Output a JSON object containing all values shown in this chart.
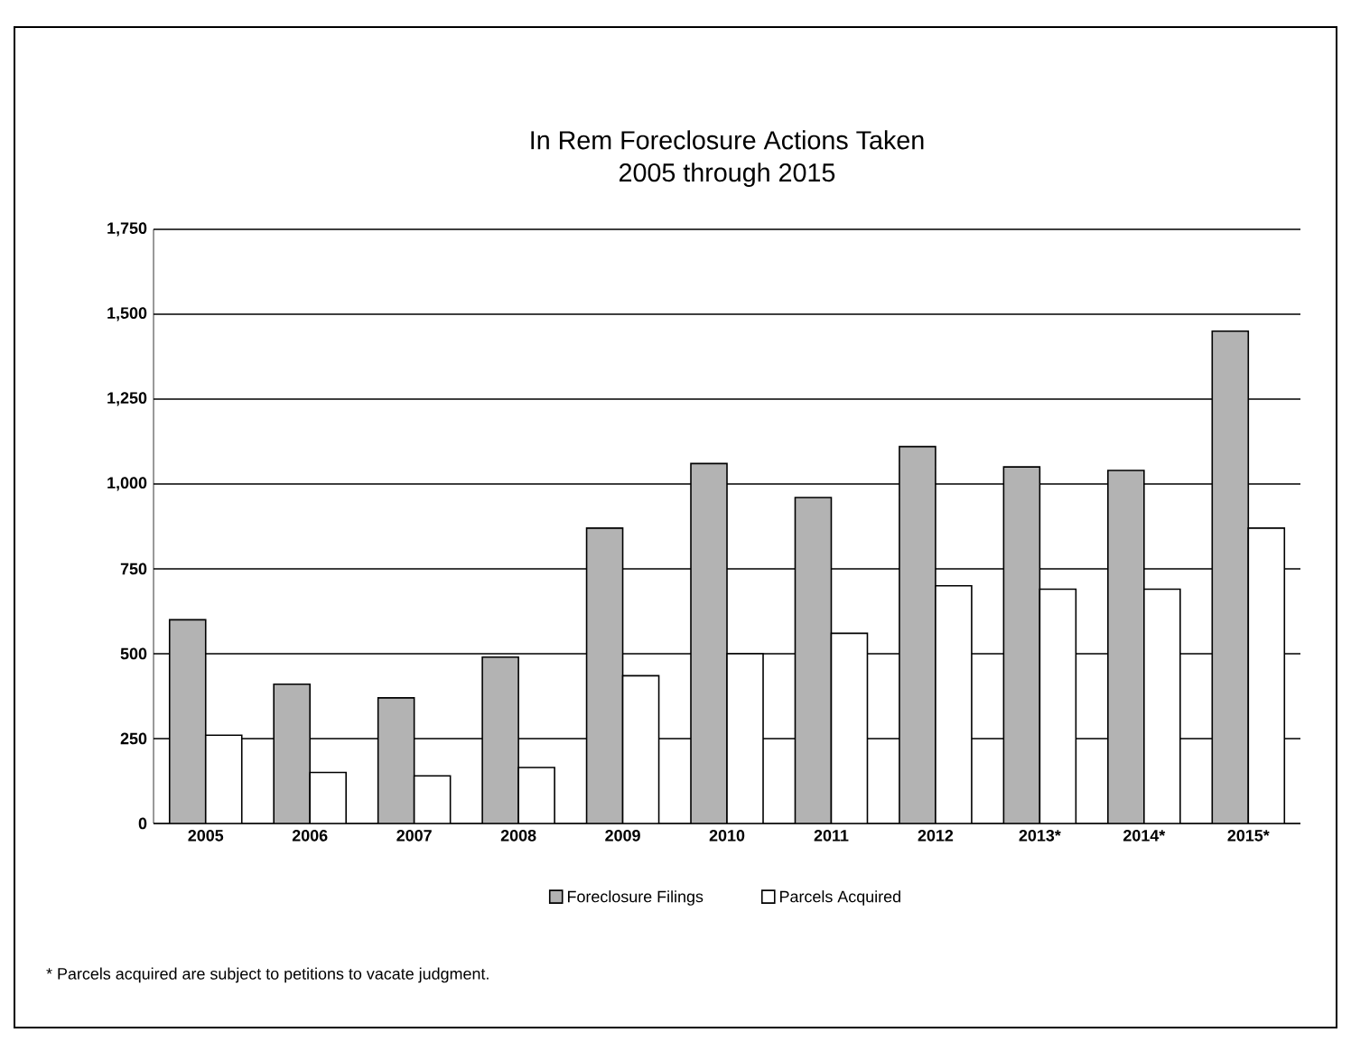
{
  "chart_data": {
    "type": "bar",
    "title": "In Rem Foreclosure Actions Taken\n2005 through 2015",
    "categories": [
      "2005",
      "2006",
      "2007",
      "2008",
      "2009",
      "2010",
      "2011",
      "2012",
      "2013*",
      "2014*",
      "2015*"
    ],
    "series": [
      {
        "name": "Foreclosure Filings",
        "color": "#b3b3b3",
        "values": [
          600,
          410,
          370,
          490,
          870,
          1060,
          960,
          1110,
          1050,
          1040,
          1450
        ]
      },
      {
        "name": "Parcels Acquired",
        "color": "#ffffff",
        "values": [
          260,
          150,
          140,
          165,
          435,
          500,
          560,
          700,
          690,
          690,
          870
        ]
      }
    ],
    "ylim": [
      0,
      1750
    ],
    "yticks": [
      0,
      {
        "value": 250,
        "label": "250"
      },
      {
        "value": 500,
        "label": "500"
      },
      {
        "value": 750,
        "label": "750"
      },
      {
        "value": 1000,
        "label": "1,000"
      },
      {
        "value": 1250,
        "label": "1,250"
      },
      {
        "value": 1500,
        "label": "1,500"
      },
      {
        "value": 1750,
        "label": "1,750"
      }
    ],
    "grid": "y",
    "legend": "bottom",
    "annotations": [
      "* Parcels acquired are subject to petitions to vacate judgment."
    ]
  }
}
